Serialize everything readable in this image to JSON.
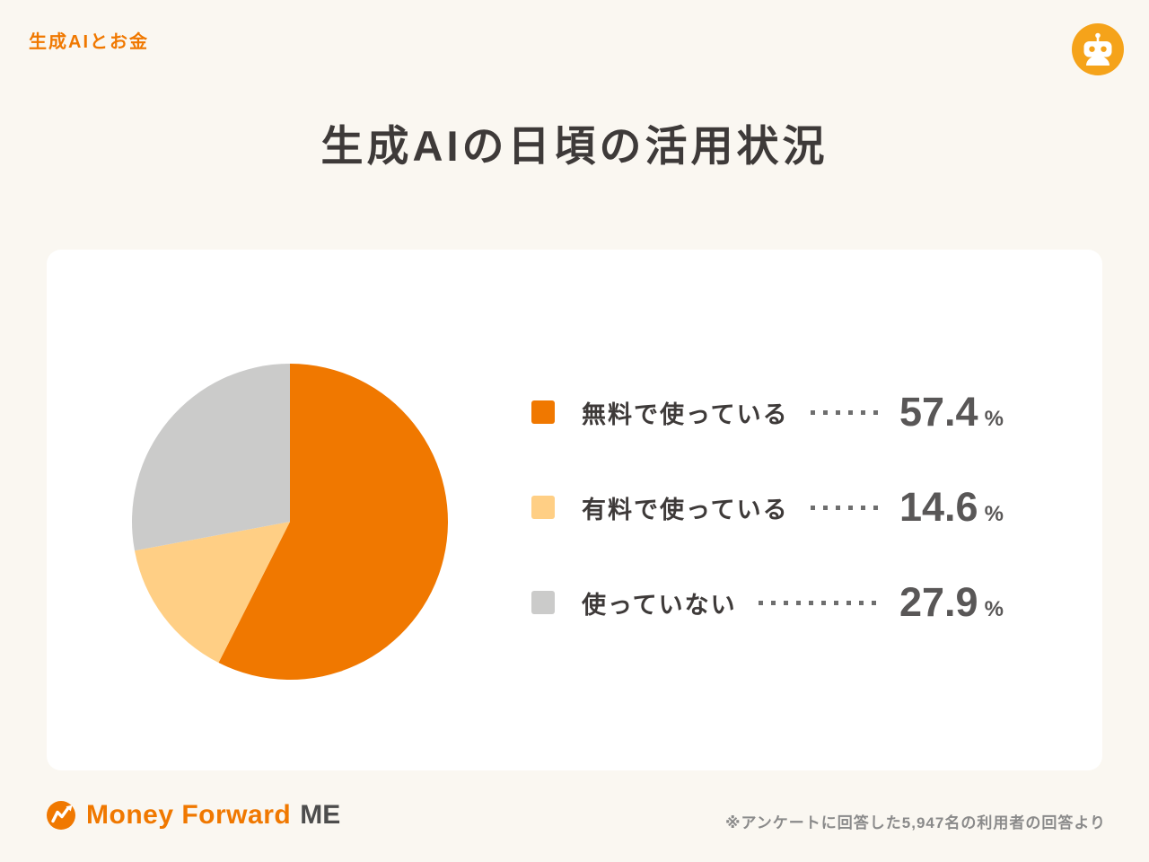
{
  "page": {
    "header_tag": "生成AIとお金",
    "title": "生成AIの日頃の活用状況",
    "footer_note": "※アンケートに回答した5,947名の利用者の回答より",
    "logo": {
      "brand": "Money Forward",
      "suffix": "ME"
    }
  },
  "colors": {
    "accent_orange": "#F07800",
    "light_orange": "#FFCF85",
    "gray": "#CBCBCA",
    "background": "#FAF7F1",
    "card": "#FFFFFF",
    "text_dark": "#3E3A39",
    "value_gray": "#595757",
    "note_gray": "#8A8A8A",
    "robot_badge": "#F5A31A"
  },
  "chart_data": {
    "type": "pie",
    "title": "生成AIの日頃の活用状況",
    "legend_position": "right",
    "start_angle_deg": 0,
    "direction": "clockwise",
    "unit": "%",
    "sample_size_label": "5,947名",
    "slices": [
      {
        "label": "無料で使っている",
        "value": 57.4,
        "unit": "%",
        "color": "#F07800"
      },
      {
        "label": "有料で使っている",
        "value": 14.6,
        "unit": "%",
        "color": "#FFCF85"
      },
      {
        "label": "使っていない",
        "value": 27.9,
        "unit": "%",
        "color": "#CBCBCA"
      }
    ]
  }
}
